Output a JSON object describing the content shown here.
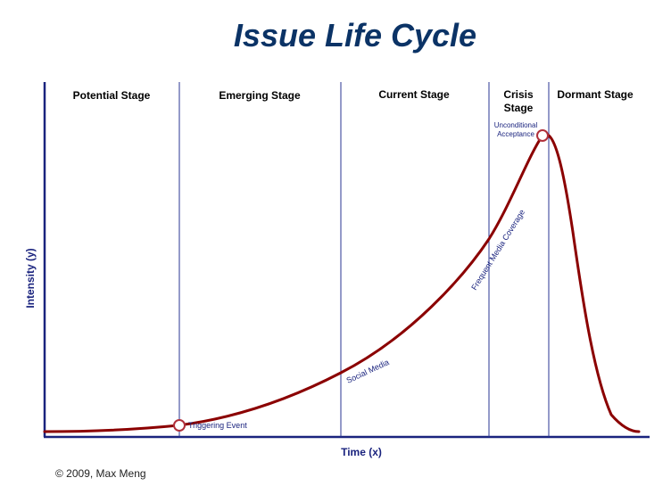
{
  "title": "Issue Life Cycle",
  "stages": [
    {
      "label_lines": [
        "Potential Stage"
      ]
    },
    {
      "label_lines": [
        "Emerging Stage"
      ]
    },
    {
      "label_lines": [
        "Current Stage"
      ]
    },
    {
      "label_lines": [
        "Crisis",
        "Stage"
      ]
    },
    {
      "label_lines": [
        "Dormant Stage"
      ]
    }
  ],
  "axes": {
    "x_label": "Time (x)",
    "y_label": "Intensity (y)"
  },
  "markers": {
    "triggering_event": "Triggering Event",
    "unconditional_acceptance_lines": [
      "Unconditional",
      "Acceptance"
    ]
  },
  "curve_labels": {
    "social_media": "Social Media",
    "frequent_media_coverage": "Frequent Media Coverage"
  },
  "copyright": "© 2009, Max Meng",
  "colors": {
    "title": "#0b3366",
    "axis": "#1a237e",
    "divider": "#283593",
    "curve": "#8b0000",
    "marker_stroke": "#b0303a",
    "annotation": "#1a237e"
  }
}
